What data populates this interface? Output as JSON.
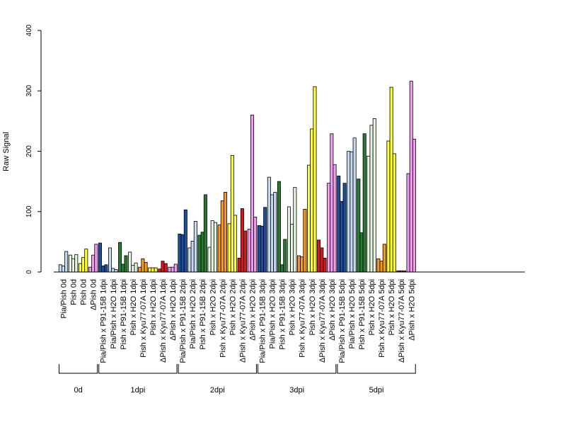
{
  "chart_data": {
    "type": "bar",
    "ylabel": "Raw Signal",
    "yticks": [
      0,
      100,
      200,
      300,
      400
    ],
    "ylim": [
      0,
      400
    ],
    "categories": [
      {
        "label": "Pia/Pish 0d",
        "color": "#c6dbef",
        "values": [
          12,
          10,
          34
        ]
      },
      {
        "label": "Pish 0d",
        "color": "#e5f5e0",
        "values": [
          28,
          22,
          29
        ]
      },
      {
        "label": "Pish 0d",
        "color": "#ffff33",
        "values": [
          14,
          24,
          38
        ]
      },
      {
        "label": "ΔPish 0d",
        "color": "#f49cf0",
        "values": [
          8,
          28,
          46
        ]
      },
      {
        "label": "Pia/Pish x P91-15B 1dpi",
        "color": "#1f4e9c",
        "values": [
          48,
          10,
          12
        ]
      },
      {
        "label": "Pia/Pish x H2O 1dpi",
        "color": "#c6dbef",
        "values": [
          40,
          6,
          4
        ]
      },
      {
        "label": "Pish x P91-15B 1dpi",
        "color": "#2a7a36",
        "values": [
          49,
          13,
          27
        ]
      },
      {
        "label": "Pish x H2O 1dpi",
        "color": "#e5f5e0",
        "values": [
          33,
          11,
          15
        ]
      },
      {
        "label": "Pish x Kyu77-07A 1dpi",
        "color": "#f59a1c",
        "values": [
          8,
          22,
          16
        ]
      },
      {
        "label": "Pish x H2O 1dpi",
        "color": "#ffff33",
        "values": [
          7,
          7,
          7
        ]
      },
      {
        "label": "ΔPish x Kyu77-07A 1dpi",
        "color": "#d7191c",
        "values": [
          5,
          18,
          14
        ]
      },
      {
        "label": "ΔPish x H2O 1dpi",
        "color": "#f49cf0",
        "values": [
          8,
          8,
          13
        ]
      },
      {
        "label": "Pia/Pish x P91-15B 2dpi",
        "color": "#1f4e9c",
        "values": [
          63,
          62,
          103
        ]
      },
      {
        "label": "Pia/Pish x H2O 2dpi",
        "color": "#c6dbef",
        "values": [
          40,
          51,
          84
        ]
      },
      {
        "label": "Pish x P91-15B 2dpi",
        "color": "#2a7a36",
        "values": [
          61,
          66,
          128
        ]
      },
      {
        "label": "Pish x H2O 2dpi",
        "color": "#e5f5e0",
        "values": [
          41,
          85,
          82
        ]
      },
      {
        "label": "Pish x Kyu77-07A 2dpi",
        "color": "#f59a1c",
        "values": [
          78,
          118,
          132
        ]
      },
      {
        "label": "Pish x H2O 2dpi",
        "color": "#ffff33",
        "values": [
          80,
          193,
          94
        ]
      },
      {
        "label": "ΔPish x Kyu77-07A 2dpi",
        "color": "#d7191c",
        "values": [
          23,
          105,
          68
        ]
      },
      {
        "label": "ΔPish x H2O 2dpi",
        "color": "#f49cf0",
        "values": [
          71,
          260,
          91
        ]
      },
      {
        "label": "Pia/Pish x P91-15B 3dpi",
        "color": "#1f4e9c",
        "values": [
          77,
          76,
          107
        ]
      },
      {
        "label": "Pia/Pish x H2O 3dpi",
        "color": "#c6dbef",
        "values": [
          157,
          128,
          132
        ]
      },
      {
        "label": "Pish x P91-15B 3dpi",
        "color": "#2a7a36",
        "values": [
          150,
          12,
          54
        ]
      },
      {
        "label": "Pish x H2O 3dpi",
        "color": "#e5f5e0",
        "values": [
          108,
          79,
          140
        ]
      },
      {
        "label": "Pish x Kyu77-07A 3dpi",
        "color": "#f59a1c",
        "values": [
          27,
          25,
          104
        ]
      },
      {
        "label": "Pish x H2O 3dpi",
        "color": "#ffff33",
        "values": [
          177,
          237,
          307
        ]
      },
      {
        "label": "ΔPish x Kyu77-07A 3dpi",
        "color": "#d7191c",
        "values": [
          53,
          40,
          23
        ]
      },
      {
        "label": "ΔPish x H2O 3dpi",
        "color": "#f49cf0",
        "values": [
          147,
          229,
          178
        ]
      },
      {
        "label": "Pia/Pish x P91-15B 5dpi",
        "color": "#1f4e9c",
        "values": [
          159,
          117,
          147
        ]
      },
      {
        "label": "Pia/Pish x H2O 5dpi",
        "color": "#c6dbef",
        "values": [
          200,
          199,
          222
        ]
      },
      {
        "label": "Pish x P91-15B 5dpi",
        "color": "#2a7a36",
        "values": [
          154,
          65,
          229
        ]
      },
      {
        "label": "Pish x H2O 5dpi",
        "color": "#e5f5e0",
        "values": [
          192,
          243,
          254
        ]
      },
      {
        "label": "Pish x Kyu77-07A 5dpi",
        "color": "#f59a1c",
        "values": [
          22,
          18,
          46
        ]
      },
      {
        "label": "Pish x H2O 5dpi",
        "color": "#ffff33",
        "values": [
          217,
          306,
          196
        ]
      },
      {
        "label": "ΔPish x Kyu77-07A 5dpi",
        "color": "#d7191c",
        "values": [
          2,
          2,
          2
        ]
      },
      {
        "label": "ΔPish x H2O 5dpi",
        "color": "#f49cf0",
        "values": [
          163,
          316,
          220
        ]
      }
    ],
    "groups": [
      {
        "label": "0d",
        "start": 0,
        "end": 3
      },
      {
        "label": "1dpi",
        "start": 4,
        "end": 11
      },
      {
        "label": "2dpi",
        "start": 12,
        "end": 19
      },
      {
        "label": "3dpi",
        "start": 20,
        "end": 27
      },
      {
        "label": "5dpi",
        "start": 28,
        "end": 35
      }
    ]
  }
}
